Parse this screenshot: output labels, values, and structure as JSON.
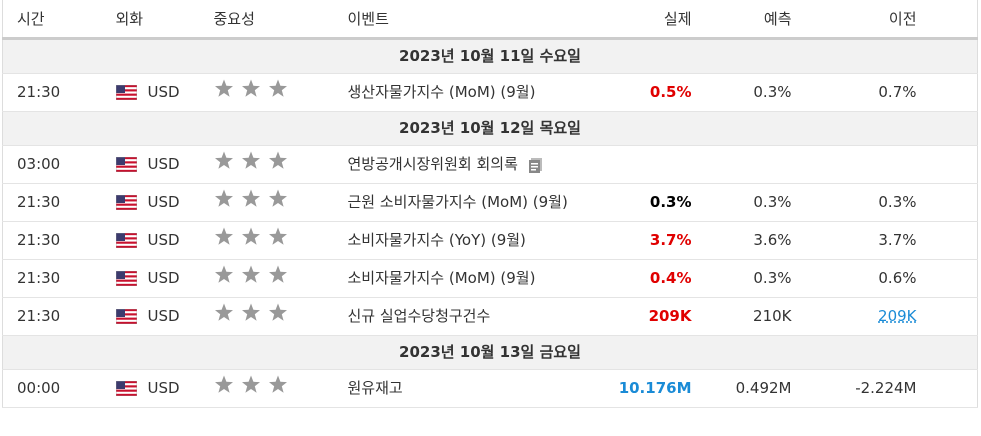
{
  "table": {
    "columns": [
      "시간",
      "외화",
      "중요성",
      "이벤트",
      "실제",
      "예측",
      "이전"
    ],
    "sections": [
      {
        "date": "2023년 10월 11일 수요일",
        "rows": [
          {
            "time": "21:30",
            "currency": "USD",
            "event": "생산자물가지수 (MoM) (9월)",
            "actual": "0.5%",
            "actual_color": "#e00000",
            "forecast": "0.3%",
            "previous": "0.7%"
          }
        ]
      },
      {
        "date": "2023년 10월 12일 목요일",
        "rows": [
          {
            "time": "03:00",
            "currency": "USD",
            "event": "연방공개시장위원회 회의록",
            "event_icon": "document",
            "actual": "",
            "actual_color": "#000000",
            "forecast": "",
            "previous": ""
          },
          {
            "time": "21:30",
            "currency": "USD",
            "event": "근원 소비자물가지수 (MoM) (9월)",
            "actual": "0.3%",
            "actual_color": "#000000",
            "forecast": "0.3%",
            "previous": "0.3%"
          },
          {
            "time": "21:30",
            "currency": "USD",
            "event": "소비자물가지수 (YoY) (9월)",
            "actual": "3.7%",
            "actual_color": "#e00000",
            "forecast": "3.6%",
            "previous": "3.7%"
          },
          {
            "time": "21:30",
            "currency": "USD",
            "event": "소비자물가지수 (MoM) (9월)",
            "actual": "0.4%",
            "actual_color": "#e00000",
            "forecast": "0.3%",
            "previous": "0.6%"
          },
          {
            "time": "21:30",
            "currency": "USD",
            "event": "신규 실업수당청구건수",
            "actual": "209K",
            "actual_color": "#e00000",
            "forecast": "210K",
            "previous": "209K",
            "previous_color": "#1a8bd6"
          }
        ]
      },
      {
        "date": "2023년 10월 13일 금요일",
        "rows": [
          {
            "time": "00:00",
            "currency": "USD",
            "event": "원유재고",
            "actual": "10.176M",
            "actual_color": "#1a8bd6",
            "forecast": "0.492M",
            "previous": "-2.224M"
          }
        ]
      }
    ]
  }
}
